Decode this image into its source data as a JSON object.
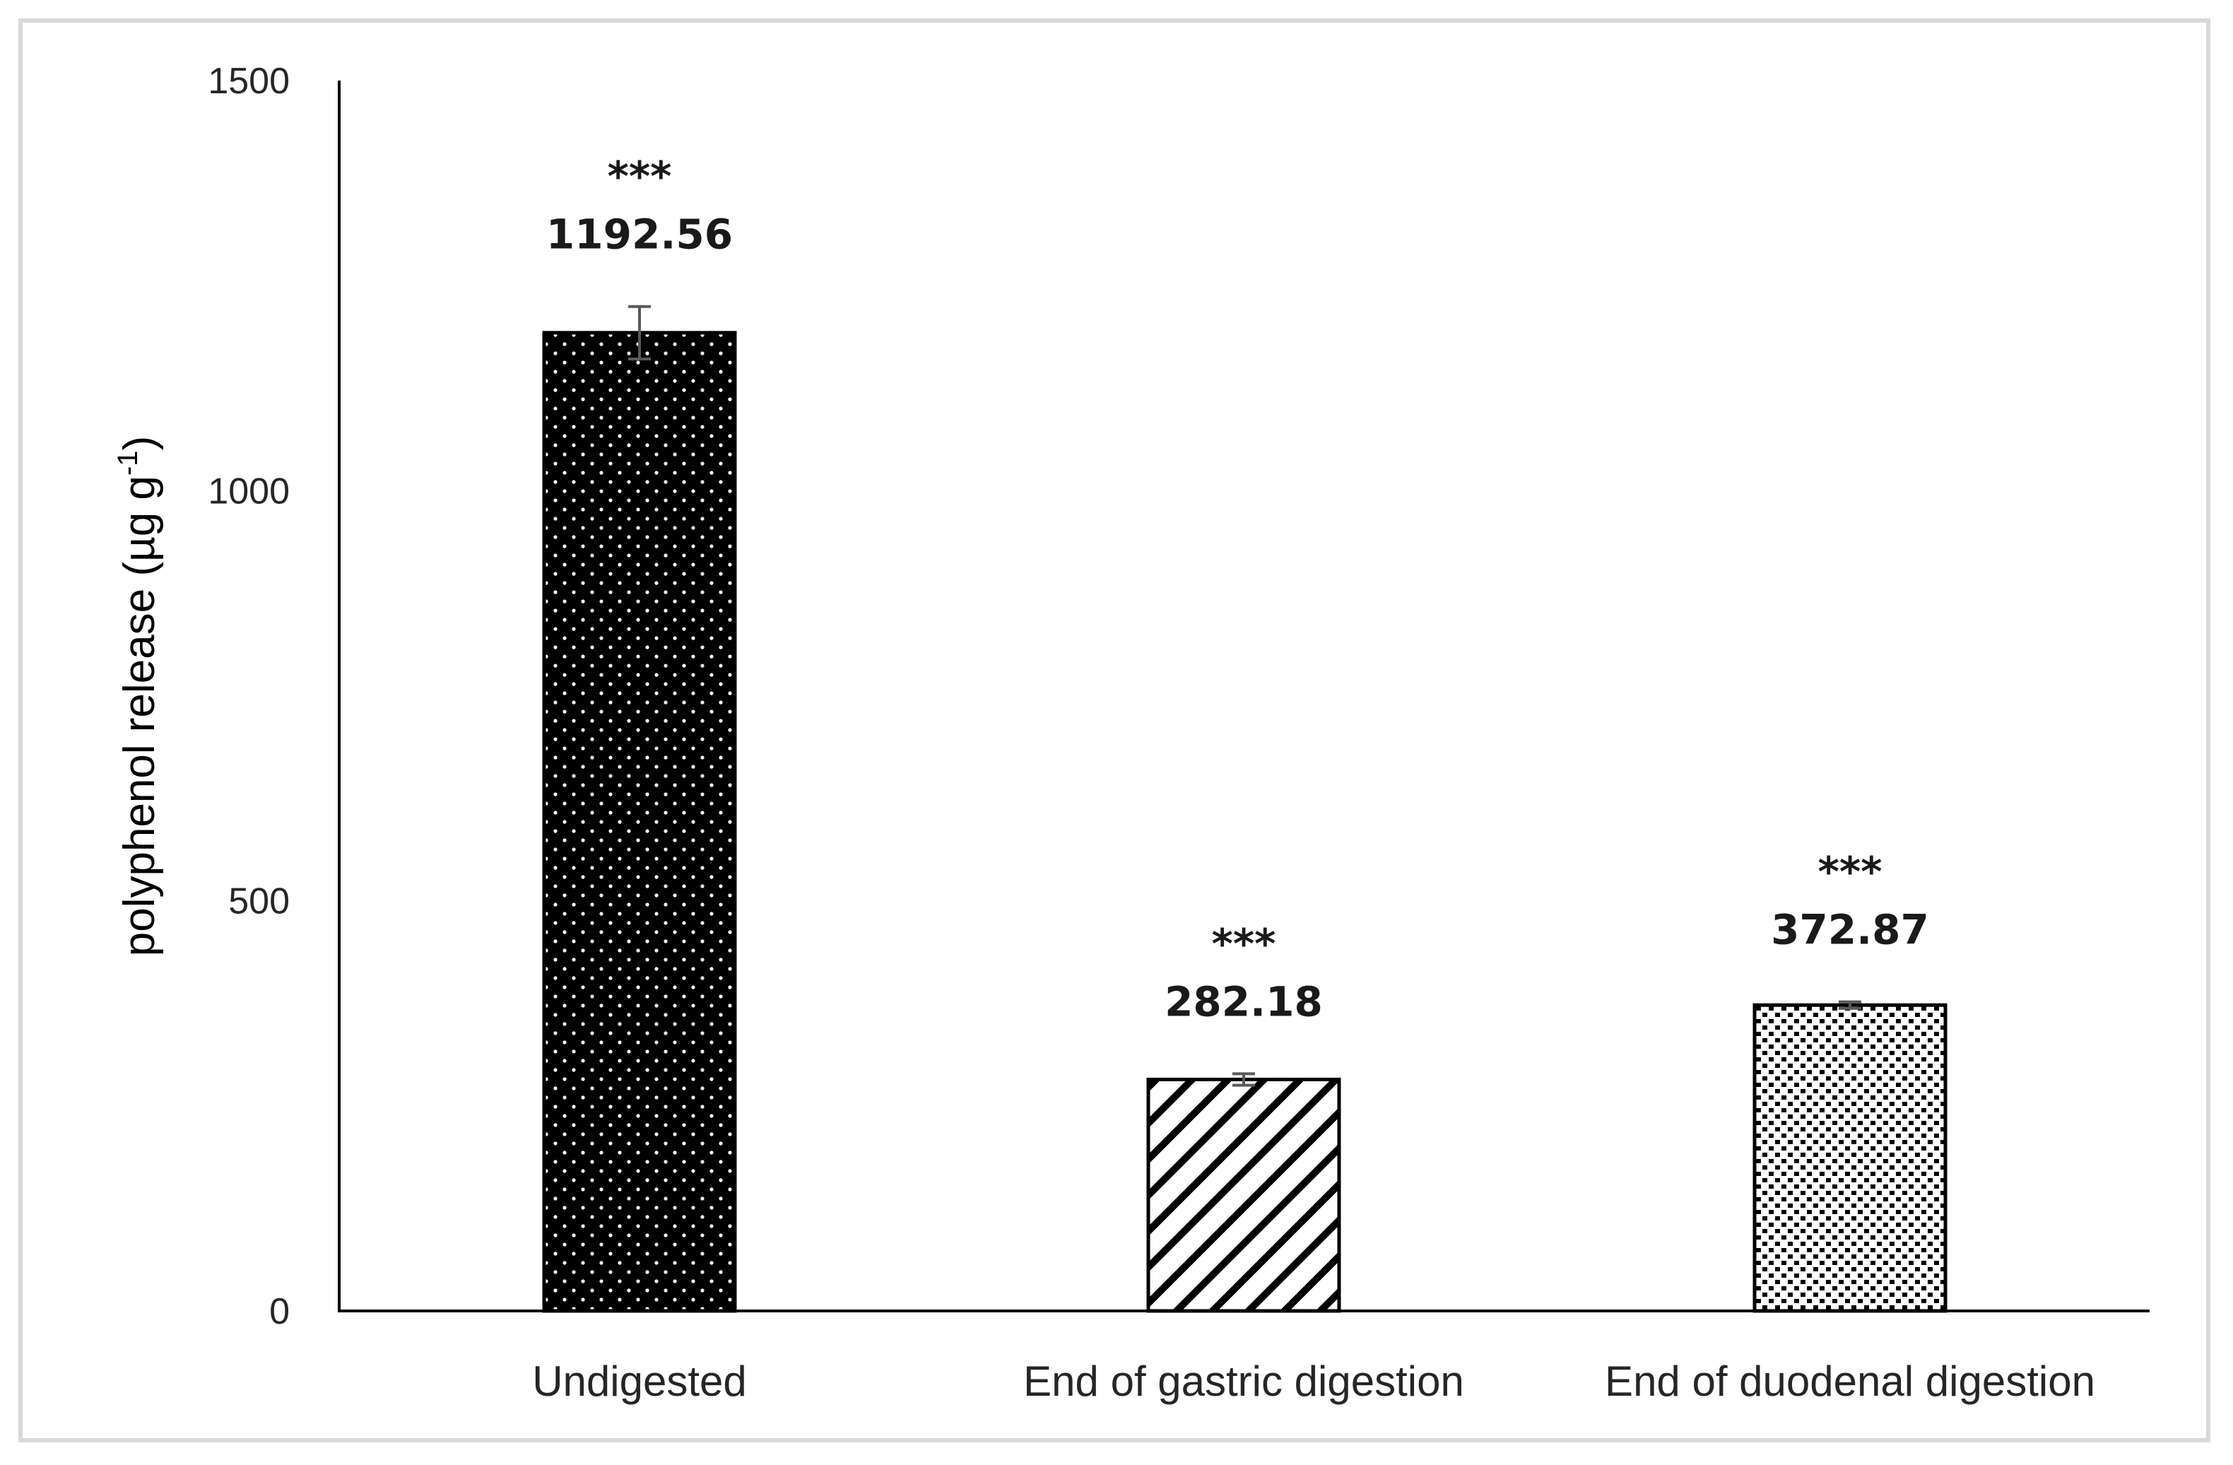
{
  "chart_data": {
    "type": "bar",
    "categories": [
      "Undigested",
      "End of gastric digestion",
      "End of duodenal digestion"
    ],
    "values": [
      1192.56,
      282.18,
      372.87
    ],
    "errors": [
      32,
      7,
      4
    ],
    "data_labels": [
      "1192.56",
      "282.18",
      "372.87"
    ],
    "annotations": [
      "***",
      "***",
      "***"
    ],
    "patterns": [
      "dense-dots-on-black",
      "diagonal-hatch",
      "black-dots-on-white"
    ],
    "ylabel": "polyphenol release (µg g",
    "ylabel_sup": "-1",
    "ylabel_close": ")",
    "ylim": [
      0,
      1500
    ],
    "yticks": [
      "0",
      "500",
      "1000",
      "1500"
    ],
    "grid": false,
    "colors": {
      "axis": "#000000",
      "bar_fill": "#000000",
      "error_bar": "#595959"
    }
  }
}
